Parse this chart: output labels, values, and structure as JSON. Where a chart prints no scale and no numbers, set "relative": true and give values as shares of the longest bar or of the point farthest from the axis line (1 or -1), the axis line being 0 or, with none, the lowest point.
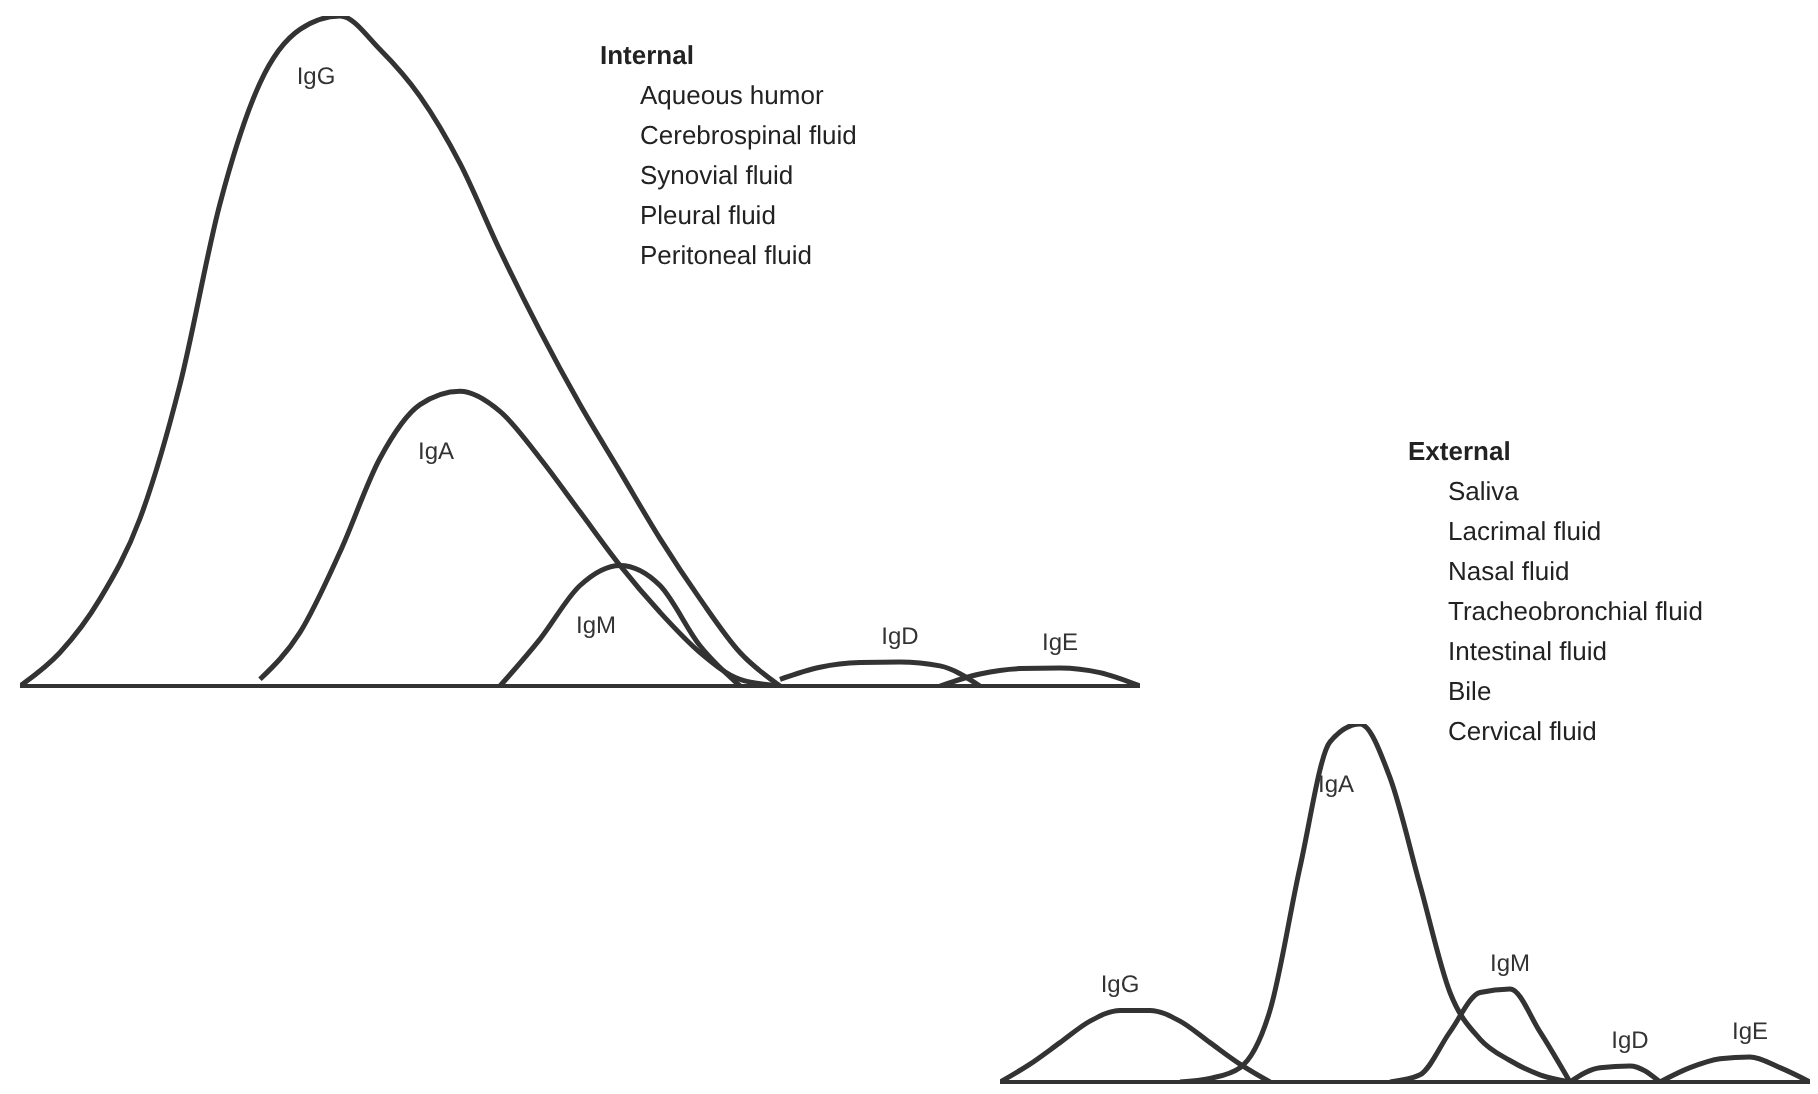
{
  "chart_data": [
    {
      "type": "line",
      "relative": true,
      "title": "Internal",
      "annotations": [
        "Aqueous humor",
        "Cerebrospinal fluid",
        "Synovial fluid",
        "Pleural fluid",
        "Peritoneal fluid"
      ],
      "categories": [
        null,
        null,
        null,
        null,
        null,
        null,
        null,
        null,
        null,
        null,
        null,
        null,
        null,
        null,
        null,
        null,
        null,
        null,
        null,
        null,
        null,
        null,
        null,
        null,
        null,
        null,
        null,
        null,
        null
      ],
      "series": [
        {
          "name": "IgG",
          "color": "#333333",
          "values": [
            0,
            0.05,
            0.13,
            0.25,
            0.45,
            0.72,
            0.9,
            0.98,
            1,
            0.95,
            0.88,
            0.78,
            0.65,
            0.53,
            0.42,
            0.32,
            0.22,
            0.13,
            0.05,
            0,
            null,
            null,
            null,
            null,
            null,
            null,
            null,
            null,
            null
          ]
        },
        {
          "name": "IgA",
          "color": "#333333",
          "values": [
            null,
            null,
            null,
            null,
            null,
            null,
            0.01,
            0.08,
            0.2,
            0.34,
            0.42,
            0.44,
            0.41,
            0.34,
            0.26,
            0.18,
            0.11,
            0.05,
            0.01,
            0,
            null,
            null,
            null,
            null,
            null,
            null,
            null,
            null,
            null
          ]
        },
        {
          "name": "IgM",
          "color": "#333333",
          "values": [
            null,
            null,
            null,
            null,
            null,
            null,
            null,
            null,
            null,
            null,
            null,
            null,
            0,
            0.07,
            0.15,
            0.18,
            0.15,
            0.06,
            0,
            null,
            null,
            null,
            null,
            null,
            null,
            null,
            null,
            null,
            null
          ]
        },
        {
          "name": "IgD",
          "color": "#333333",
          "values": [
            null,
            null,
            null,
            null,
            null,
            null,
            null,
            null,
            null,
            null,
            null,
            null,
            null,
            null,
            null,
            null,
            null,
            null,
            null,
            0.01,
            0.028,
            0.035,
            0.036,
            0.03,
            0,
            null,
            null,
            null,
            null
          ]
        },
        {
          "name": "IgE",
          "color": "#333333",
          "values": [
            null,
            null,
            null,
            null,
            null,
            null,
            null,
            null,
            null,
            null,
            null,
            null,
            null,
            null,
            null,
            null,
            null,
            null,
            null,
            null,
            null,
            null,
            null,
            0,
            0.018,
            0.026,
            0.027,
            0.02,
            0
          ]
        }
      ]
    },
    {
      "type": "line",
      "relative": true,
      "title": "External",
      "annotations": [
        "Saliva",
        "Lacrimal fluid",
        "Nasal fluid",
        "Tracheobronchial fluid",
        "Intestinal fluid",
        "Bile",
        "Cervical fluid"
      ],
      "categories": [
        null,
        null,
        null,
        null,
        null,
        null,
        null,
        null,
        null,
        null,
        null,
        null,
        null,
        null,
        null,
        null,
        null,
        null,
        null,
        null,
        null,
        null,
        null,
        null,
        null,
        null,
        null,
        null
      ],
      "series": [
        {
          "name": "IgG",
          "color": "#333333",
          "values": [
            0,
            0.05,
            0.11,
            0.17,
            0.2,
            0.2,
            0.17,
            0.11,
            0.05,
            0,
            null,
            null,
            null,
            null,
            null,
            null,
            null,
            null,
            null,
            null,
            null,
            null,
            null,
            null,
            null,
            null,
            null,
            null
          ]
        },
        {
          "name": "IgA",
          "color": "#333333",
          "values": [
            null,
            null,
            null,
            null,
            null,
            null,
            0,
            0.01,
            0.04,
            0.2,
            0.6,
            0.95,
            1,
            0.85,
            0.55,
            0.25,
            0.12,
            0.06,
            0.02,
            0,
            null,
            null,
            null,
            null,
            null,
            null,
            null,
            null
          ]
        },
        {
          "name": "IgM",
          "color": "#333333",
          "values": [
            null,
            null,
            null,
            null,
            null,
            null,
            null,
            null,
            null,
            null,
            null,
            null,
            null,
            0,
            0.02,
            0.14,
            0.25,
            0.26,
            0.14,
            0,
            null,
            null,
            null,
            null,
            null,
            null,
            null,
            null
          ]
        },
        {
          "name": "IgD",
          "color": "#333333",
          "values": [
            null,
            null,
            null,
            null,
            null,
            null,
            null,
            null,
            null,
            null,
            null,
            null,
            null,
            null,
            null,
            null,
            null,
            null,
            null,
            0,
            0.04,
            0.045,
            0,
            null,
            null,
            null,
            null,
            null
          ]
        },
        {
          "name": "IgE",
          "color": "#333333",
          "values": [
            null,
            null,
            null,
            null,
            null,
            null,
            null,
            null,
            null,
            null,
            null,
            null,
            null,
            null,
            null,
            null,
            null,
            null,
            null,
            null,
            null,
            null,
            0,
            0.04,
            0.065,
            0.07,
            0.04,
            0
          ]
        }
      ]
    }
  ]
}
